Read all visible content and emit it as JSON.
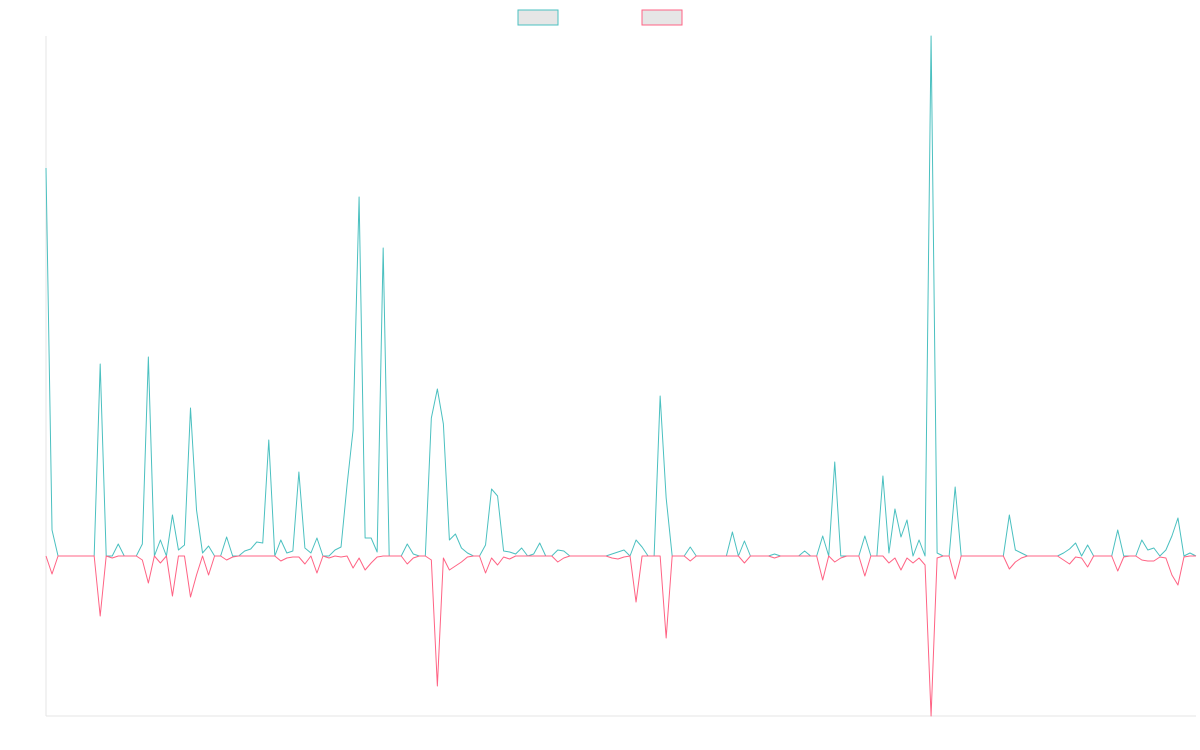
{
  "chart_data": {
    "type": "line",
    "ylim": [
      -16,
      52
    ],
    "legend": "top",
    "series": [
      {
        "color": "#4bc0c0",
        "values": [
          38.8,
          2.6,
          0,
          0,
          0,
          0,
          0,
          0,
          0,
          19.2,
          0,
          0,
          1.2,
          0,
          0,
          0,
          1.2,
          19.9,
          0,
          1.6,
          0,
          4.1,
          0.6,
          1.1,
          14.8,
          4.6,
          0.3,
          1,
          0,
          0,
          1.9,
          0,
          0,
          0.5,
          0.7,
          1.4,
          1.3,
          11.6,
          0,
          1.6,
          0.3,
          0.5,
          8.4,
          0.8,
          0.3,
          1.8,
          0,
          0,
          0.6,
          0.9,
          7.1,
          12.6,
          35.9,
          1.8,
          1.8,
          0.4,
          30.8,
          0,
          0,
          0,
          1.2,
          0.2,
          0,
          0,
          13.8,
          16.7,
          13.2,
          1.6,
          2.2,
          0.8,
          0.3,
          0,
          0,
          1.1,
          6.7,
          6,
          0.5,
          0.4,
          0.2,
          0.8,
          0,
          0.2,
          1.3,
          0,
          0,
          0.6,
          0.5,
          0,
          0,
          0,
          0,
          0,
          0,
          0,
          0.2,
          0.4,
          0.6,
          0,
          1.6,
          0.9,
          0,
          0,
          16,
          5.8,
          0,
          0,
          0,
          0.9,
          0,
          0,
          0,
          0,
          0,
          0,
          2.4,
          0,
          1.5,
          0,
          0,
          0,
          0,
          0.2,
          0,
          0,
          0,
          0,
          0.5,
          0,
          0,
          2,
          0,
          9.4,
          0,
          0,
          0,
          0,
          2,
          0,
          0,
          8,
          0.3,
          4.7,
          1.9,
          3.6,
          0,
          1.6,
          0,
          52,
          0.3,
          0,
          0,
          6.9,
          0,
          0,
          0,
          0,
          0,
          0,
          0,
          0,
          4.1,
          0.6,
          0.3,
          0,
          0,
          0,
          0,
          0,
          0,
          0.3,
          0.7,
          1.3,
          0,
          1.1,
          0,
          0,
          0,
          0,
          2.6,
          0,
          0,
          0,
          1.6,
          0.6,
          0.8,
          0,
          0.6,
          2,
          3.8,
          0,
          0.3,
          0
        ]
      },
      {
        "color": "#ff6384",
        "values": [
          0,
          -1.8,
          0,
          0,
          0,
          0,
          0,
          0,
          0,
          -6,
          0,
          -0.2,
          0,
          0,
          0,
          0,
          -0.4,
          -2.7,
          0,
          -0.7,
          0,
          -4,
          0,
          0,
          -4.1,
          -1.9,
          0,
          -1.9,
          0,
          0,
          -0.4,
          -0.1,
          0,
          0,
          0,
          0,
          0,
          0,
          0,
          -0.5,
          -0.2,
          -0.1,
          -0.1,
          -0.8,
          0,
          -1.7,
          0,
          -0.2,
          0,
          -0.1,
          0,
          -1.2,
          -0.2,
          -1.4,
          -0.7,
          -0.1,
          0,
          0,
          0,
          0,
          -0.8,
          -0.2,
          0,
          0,
          -0.4,
          -13,
          -0.2,
          -1.4,
          -1,
          -0.6,
          -0.1,
          0,
          0,
          -1.7,
          -0.2,
          -0.9,
          -0.1,
          -0.3,
          0,
          0,
          0,
          0,
          0,
          0,
          0,
          -0.6,
          -0.2,
          0,
          0,
          0,
          0,
          0,
          0,
          0,
          -0.2,
          -0.3,
          -0.1,
          0,
          -4.6,
          0,
          0,
          0,
          0,
          -8.2,
          0,
          0,
          0,
          -0.5,
          0,
          0,
          0,
          0,
          0,
          0,
          0,
          0,
          -0.7,
          0,
          0,
          0,
          0,
          -0.2,
          0,
          0,
          0,
          0,
          0,
          0,
          0,
          -2.4,
          0,
          -0.6,
          -0.2,
          0,
          0,
          0,
          -2,
          0,
          0,
          0,
          -0.7,
          -0.2,
          -1.4,
          -0.2,
          -0.7,
          -0.2,
          -0.9,
          -16,
          -0.2,
          0,
          0,
          -2.3,
          0,
          0,
          0,
          0,
          0,
          0,
          0,
          0,
          -1.3,
          -0.6,
          -0.2,
          0,
          0,
          0,
          0,
          0,
          0,
          -0.4,
          -0.8,
          -0.1,
          -0.2,
          -1.1,
          0,
          0,
          0,
          0,
          -1.5,
          -0.1,
          0,
          0,
          -0.4,
          -0.5,
          -0.5,
          -0.1,
          -0.2,
          -1.9,
          -2.9,
          -0.1,
          0,
          0
        ]
      }
    ]
  }
}
